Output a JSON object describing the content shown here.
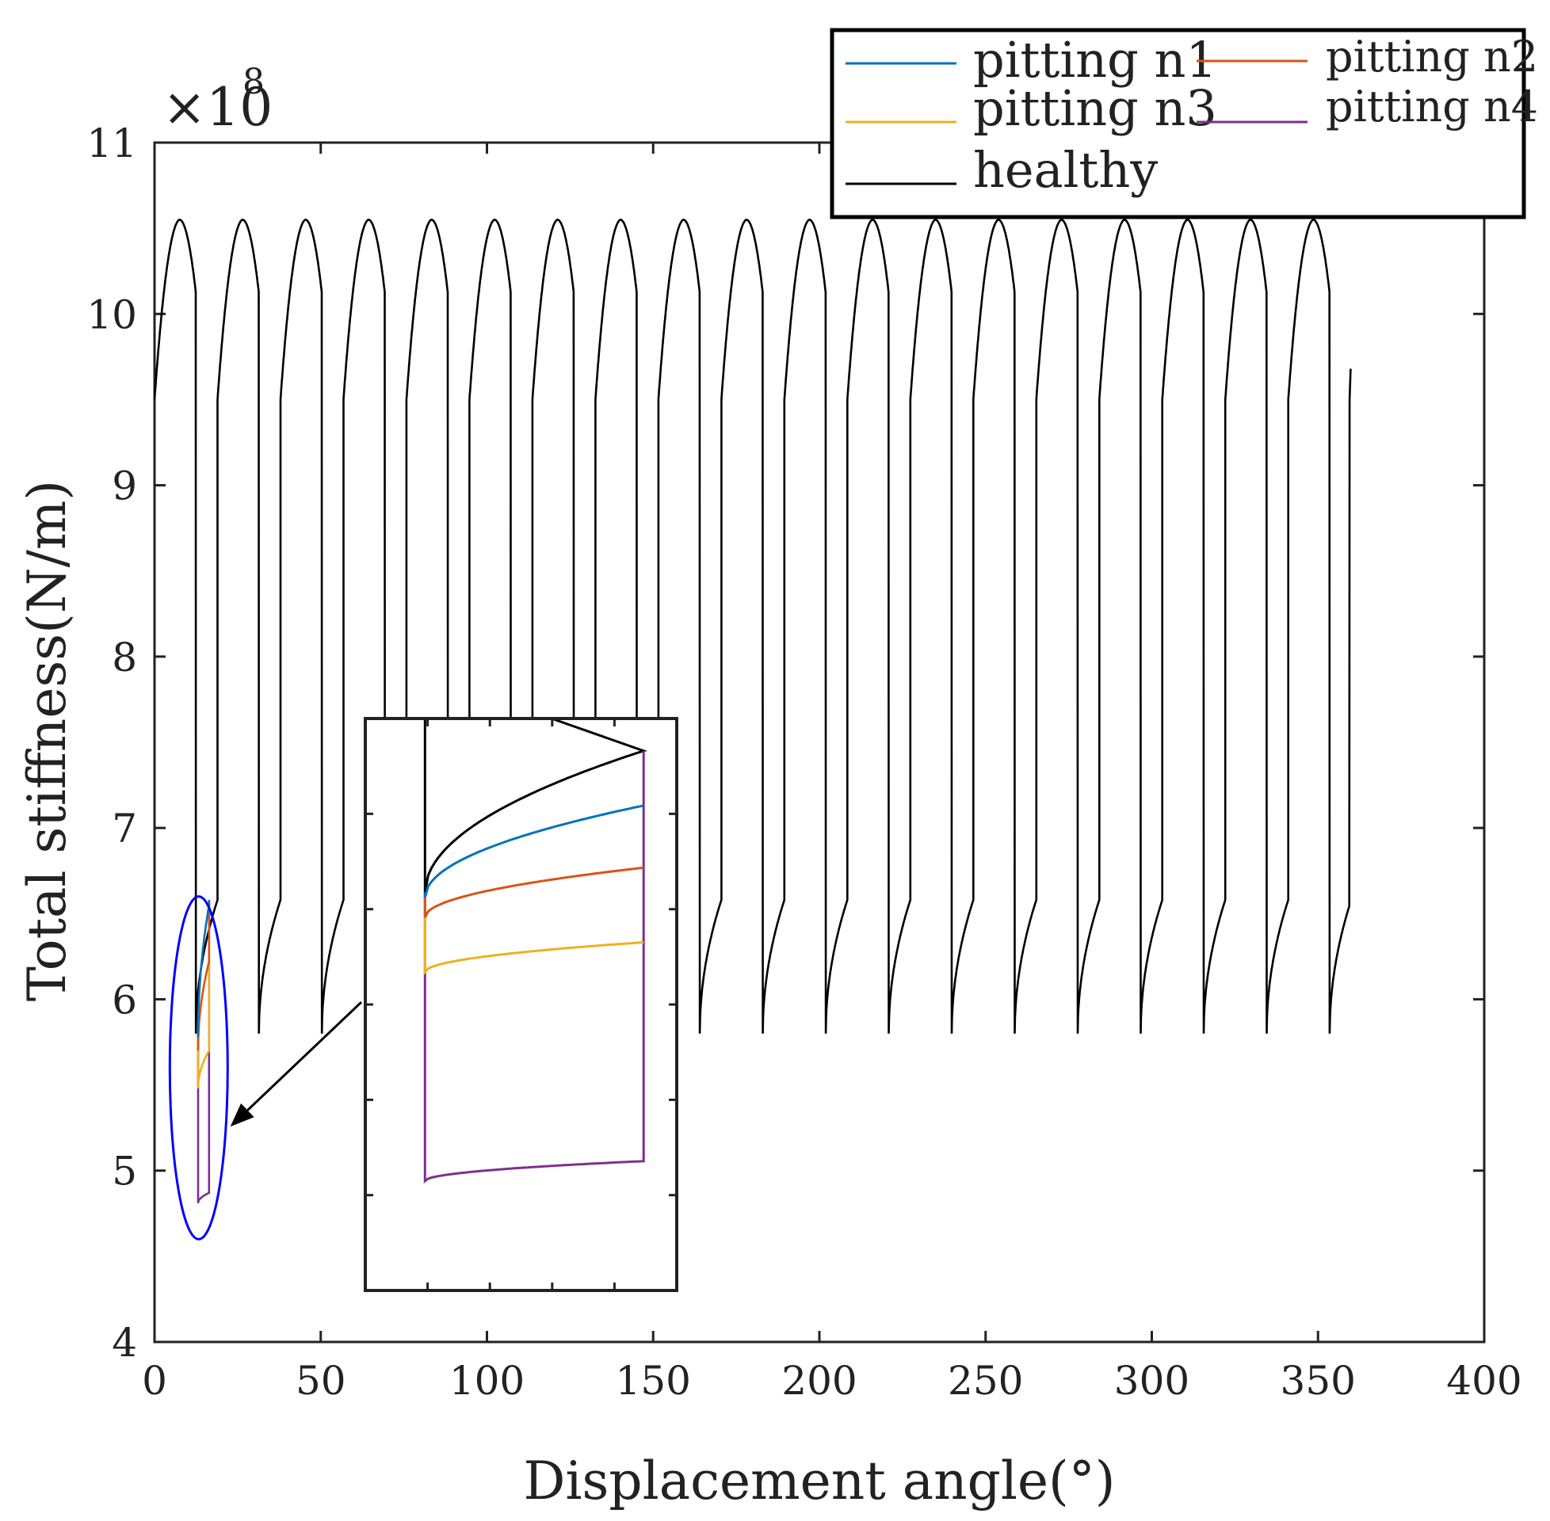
{
  "chart_data": {
    "type": "line",
    "title": "",
    "xlabel": "Displacement angle(°)",
    "ylabel": "Total stiffness(N/m)",
    "y_exponent_label": "×10",
    "y_exponent_power": "8",
    "xlim": [
      0,
      400
    ],
    "ylim": [
      4,
      11
    ],
    "x_ticks": [
      0,
      50,
      100,
      150,
      200,
      250,
      300,
      350,
      400
    ],
    "y_ticks": [
      4,
      5,
      6,
      7,
      8,
      9,
      10,
      11
    ],
    "x_tick_labels": [
      "0",
      "50",
      "100",
      "150",
      "200",
      "250",
      "300",
      "350",
      "400"
    ],
    "y_tick_labels": [
      "4",
      "5",
      "6",
      "7",
      "8",
      "9",
      "10",
      "11"
    ],
    "mesh_period_deg": 18.9474,
    "healthy_profile": {
      "double_contact_end_offset": 6.5,
      "start_value": 9.5,
      "peak_offset": 7.5,
      "peak_value": 10.55,
      "end_value": 10.12,
      "single_start_value": 5.8,
      "single_end_value": 6.58
    },
    "series": [
      {
        "name": "pitting n1",
        "color": "#0072BD",
        "single_start_value": 5.78,
        "single_end_value": 6.55
      },
      {
        "name": "pitting n2",
        "color": "#D95319",
        "single_start_value": 5.7,
        "single_end_value": 6.22
      },
      {
        "name": "pitting n3",
        "color": "#EDB120",
        "single_start_value": 5.48,
        "single_end_value": 5.7
      },
      {
        "name": "pitting n4",
        "color": "#7E2F8E",
        "single_start_value": 4.81,
        "single_end_value": 4.87
      },
      {
        "name": "healthy",
        "color": "#000000"
      }
    ],
    "pitting_region_x": [
      13.1,
      16.4
    ],
    "highlight_ellipse": {
      "center_x": 13.3,
      "center_y": 5.6,
      "rx_deg": 8.7,
      "ry_value": 1.0,
      "color": "#0000FF"
    },
    "inset": {
      "xlim": [
        12.2,
        16.9
      ],
      "ylim": [
        4.2,
        6.5
      ],
      "tick_count_x": 4,
      "tick_count_y": 5
    }
  }
}
